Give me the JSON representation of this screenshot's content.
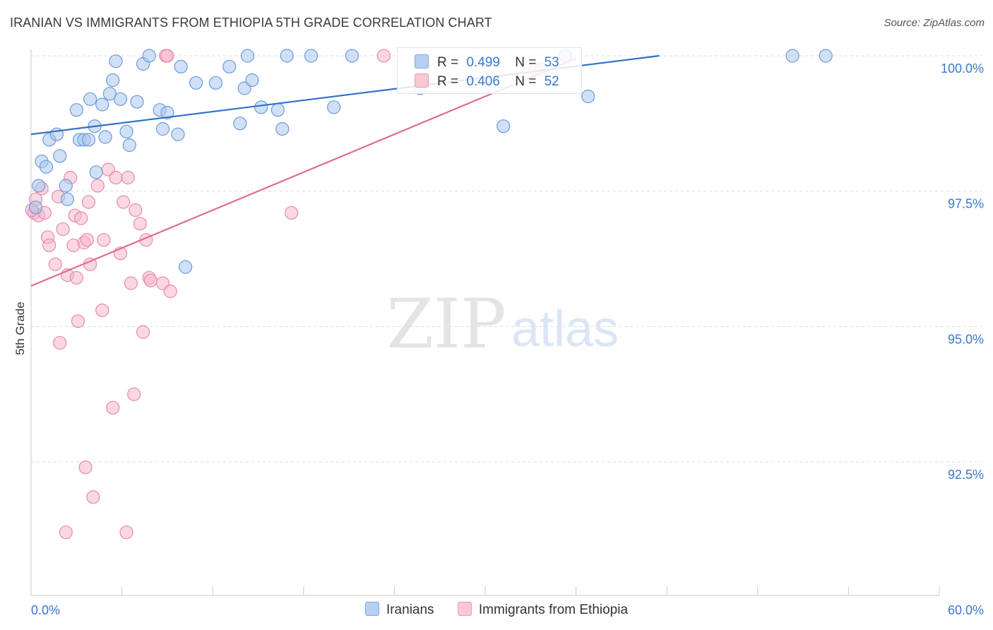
{
  "title": "IRANIAN VS IMMIGRANTS FROM ETHIOPIA 5TH GRADE CORRELATION CHART",
  "source": "Source: ZipAtlas.com",
  "watermark": {
    "zip": "ZIP",
    "atlas": "atlas"
  },
  "colors": {
    "blue": "#3a78c9",
    "blue_fill": "#a9c6ee",
    "blue_line": "#2f6fc7",
    "pink_fill": "#f6b8cb",
    "pink_stroke": "#e88aa8",
    "pink_line": "#e06b93",
    "grid": "#dcdcdc"
  },
  "legend": {
    "series": [
      {
        "r_label": "R =",
        "r_value": "0.499",
        "n_label": "N =",
        "n_value": "53"
      },
      {
        "r_label": "R =",
        "r_value": "0.406",
        "n_label": "N =",
        "n_value": "52"
      }
    ]
  },
  "bottom_legend": [
    "Iranians",
    "Immigrants from Ethiopia"
  ],
  "chart_data": {
    "type": "scatter",
    "title": "IRANIAN VS IMMIGRANTS FROM ETHIOPIA 5TH GRADE CORRELATION CHART",
    "xlabel": "",
    "ylabel": "5th Grade",
    "xlim": [
      0,
      60
    ],
    "ylim": [
      90.2,
      100.35
    ],
    "x_tick_labels": [
      "0.0%",
      "60.0%"
    ],
    "y_ticks": [
      92.5,
      95.0,
      97.5,
      100.0
    ],
    "y_tick_labels": [
      "92.5%",
      "95.0%",
      "97.5%",
      "100.0%"
    ],
    "grid": true,
    "series": [
      {
        "name": "Iranians",
        "trend": {
          "x": [
            0,
            41.5
          ],
          "y": [
            98.55,
            100.0
          ]
        },
        "points": [
          [
            0.3,
            97.2
          ],
          [
            0.5,
            97.6
          ],
          [
            0.7,
            98.05
          ],
          [
            1.0,
            97.95
          ],
          [
            1.2,
            98.45
          ],
          [
            1.7,
            98.55
          ],
          [
            1.9,
            98.15
          ],
          [
            2.3,
            97.6
          ],
          [
            2.4,
            97.35
          ],
          [
            3.0,
            99.0
          ],
          [
            3.2,
            98.45
          ],
          [
            3.5,
            98.45
          ],
          [
            3.8,
            98.45
          ],
          [
            3.9,
            99.2
          ],
          [
            4.2,
            98.7
          ],
          [
            4.3,
            97.85
          ],
          [
            4.7,
            99.1
          ],
          [
            4.9,
            98.5
          ],
          [
            5.2,
            99.3
          ],
          [
            5.4,
            99.55
          ],
          [
            5.6,
            99.9
          ],
          [
            5.9,
            99.2
          ],
          [
            6.3,
            98.6
          ],
          [
            6.5,
            98.35
          ],
          [
            7.0,
            99.15
          ],
          [
            7.4,
            99.85
          ],
          [
            7.8,
            100.0
          ],
          [
            8.5,
            99.0
          ],
          [
            8.7,
            98.65
          ],
          [
            9.0,
            98.95
          ],
          [
            9.7,
            98.55
          ],
          [
            9.9,
            99.8
          ],
          [
            10.2,
            96.1
          ],
          [
            10.9,
            99.5
          ],
          [
            12.2,
            99.5
          ],
          [
            13.1,
            99.8
          ],
          [
            13.8,
            98.75
          ],
          [
            14.1,
            99.4
          ],
          [
            14.3,
            100.0
          ],
          [
            14.6,
            99.55
          ],
          [
            15.2,
            99.05
          ],
          [
            16.3,
            99.0
          ],
          [
            16.6,
            98.65
          ],
          [
            16.9,
            100.0
          ],
          [
            18.5,
            100.0
          ],
          [
            20.0,
            99.05
          ],
          [
            21.2,
            100.0
          ],
          [
            25.7,
            99.4
          ],
          [
            31.2,
            98.7
          ],
          [
            35.3,
            100.0
          ],
          [
            36.8,
            99.25
          ],
          [
            50.3,
            100.0
          ],
          [
            52.5,
            100.0
          ]
        ]
      },
      {
        "name": "Immigrants from Ethiopia",
        "trend": {
          "x": [
            0,
            36.0
          ],
          "y": [
            95.75,
            99.95
          ]
        },
        "points": [
          [
            0.2,
            97.1
          ],
          [
            0.3,
            97.35
          ],
          [
            0.5,
            97.05
          ],
          [
            0.7,
            97.55
          ],
          [
            0.9,
            97.1
          ],
          [
            1.1,
            96.65
          ],
          [
            1.2,
            96.5
          ],
          [
            1.6,
            96.15
          ],
          [
            1.8,
            97.4
          ],
          [
            1.9,
            94.7
          ],
          [
            2.1,
            96.8
          ],
          [
            2.3,
            91.2
          ],
          [
            2.4,
            95.95
          ],
          [
            2.6,
            97.75
          ],
          [
            2.8,
            96.5
          ],
          [
            2.9,
            97.05
          ],
          [
            3.0,
            95.9
          ],
          [
            3.1,
            95.1
          ],
          [
            3.3,
            97.0
          ],
          [
            3.5,
            96.55
          ],
          [
            3.6,
            92.4
          ],
          [
            3.7,
            96.6
          ],
          [
            3.8,
            97.3
          ],
          [
            3.9,
            96.15
          ],
          [
            4.1,
            91.85
          ],
          [
            4.4,
            97.6
          ],
          [
            4.7,
            95.3
          ],
          [
            4.8,
            96.6
          ],
          [
            5.1,
            97.9
          ],
          [
            5.4,
            93.5
          ],
          [
            5.6,
            97.75
          ],
          [
            5.9,
            96.35
          ],
          [
            6.1,
            97.3
          ],
          [
            6.3,
            91.2
          ],
          [
            6.4,
            97.75
          ],
          [
            6.6,
            95.8
          ],
          [
            6.8,
            93.75
          ],
          [
            6.9,
            97.15
          ],
          [
            7.2,
            96.9
          ],
          [
            7.4,
            94.9
          ],
          [
            7.6,
            96.6
          ],
          [
            7.8,
            95.9
          ],
          [
            7.9,
            95.85
          ],
          [
            8.7,
            95.8
          ],
          [
            8.9,
            100.0
          ],
          [
            9.0,
            100.0
          ],
          [
            9.2,
            95.65
          ],
          [
            17.2,
            97.1
          ],
          [
            23.3,
            100.0
          ],
          [
            33.3,
            99.75
          ],
          [
            33.7,
            99.75
          ],
          [
            0.05,
            97.15
          ]
        ]
      }
    ]
  }
}
